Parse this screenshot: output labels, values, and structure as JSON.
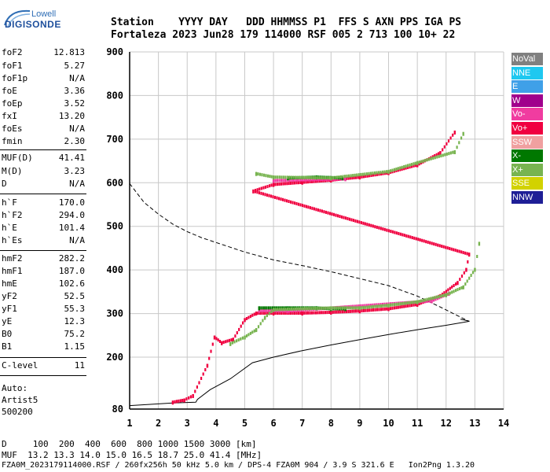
{
  "logo": {
    "line1": "Lowell",
    "line2": "DIGISONDE"
  },
  "header": {
    "row1": "Station    YYYY DAY   DDD HHMMSS P1  FFS S AXN PPS IGA PS",
    "row2": "Fortaleza 2023 Jun28 179 114000 RSF 005 2 713 100 10+ 22"
  },
  "params": [
    {
      "label": "foF2",
      "value": "12.813"
    },
    {
      "label": "foF1",
      "value": "5.27"
    },
    {
      "label": "foF1p",
      "value": "N/A"
    },
    {
      "label": "foE",
      "value": "3.36"
    },
    {
      "label": "foEp",
      "value": "3.52"
    },
    {
      "label": "fxI",
      "value": "13.20"
    },
    {
      "label": "foEs",
      "value": "N/A"
    },
    {
      "label": "fmin",
      "value": "2.30"
    },
    {
      "label": "MUF(D)",
      "value": "41.41"
    },
    {
      "label": "M(D)",
      "value": "3.23"
    },
    {
      "label": "D",
      "value": "N/A"
    },
    {
      "label": "h`F",
      "value": "170.0"
    },
    {
      "label": "h`F2",
      "value": "294.0"
    },
    {
      "label": "h`E",
      "value": "101.4"
    },
    {
      "label": "h`Es",
      "value": "N/A"
    },
    {
      "label": "hmF2",
      "value": "282.2"
    },
    {
      "label": "hmF1",
      "value": "187.0"
    },
    {
      "label": "hmE",
      "value": "102.6"
    },
    {
      "label": "yF2",
      "value": "52.5"
    },
    {
      "label": "yF1",
      "value": "55.3"
    },
    {
      "label": "yE",
      "value": "12.3"
    },
    {
      "label": "B0",
      "value": "75.2"
    },
    {
      "label": "B1",
      "value": "1.15"
    },
    {
      "label": "C-level",
      "value": "11"
    }
  ],
  "auto_block": "Auto:\nArtist5\n500200",
  "legend": [
    {
      "label": "NoVal",
      "color": "#808080"
    },
    {
      "label": "NNE",
      "color": "#1ec8f0"
    },
    {
      "label": "E",
      "color": "#3fa0e8"
    },
    {
      "label": "W",
      "color": "#a0008c"
    },
    {
      "label": "Vo-",
      "color": "#f03ca0"
    },
    {
      "label": "Vo+",
      "color": "#f00040"
    },
    {
      "label": "SSW",
      "color": "#f0a0a0"
    },
    {
      "label": "X-",
      "color": "#007800"
    },
    {
      "label": "X+",
      "color": "#78b450"
    },
    {
      "label": "SSE",
      "color": "#d2d200"
    },
    {
      "label": "NNW",
      "color": "#1e1e96"
    }
  ],
  "chart_data": {
    "type": "scatter",
    "title": "",
    "xlabel": "",
    "ylabel": "",
    "xlim": [
      1,
      14
    ],
    "ylim": [
      80,
      900
    ],
    "x_ticks": [
      1,
      2,
      3,
      4,
      5,
      6,
      7,
      8,
      9,
      10,
      11,
      12,
      13,
      14
    ],
    "y_ticks": [
      80,
      200,
      300,
      400,
      500,
      600,
      700,
      800,
      900
    ],
    "grid": true,
    "series": [
      {
        "name": "Vo+",
        "points": [
          [
            2.5,
            95
          ],
          [
            2.9,
            100
          ],
          [
            3.2,
            110
          ],
          [
            3.7,
            180
          ],
          [
            3.95,
            245
          ],
          [
            4.2,
            232
          ],
          [
            4.6,
            240
          ],
          [
            5.0,
            285
          ],
          [
            5.4,
            300
          ],
          [
            6,
            300
          ],
          [
            7,
            300
          ],
          [
            8,
            302
          ],
          [
            9,
            305
          ],
          [
            10,
            310
          ],
          [
            11,
            320
          ],
          [
            11.8,
            340
          ],
          [
            12.4,
            370
          ],
          [
            12.7,
            400
          ],
          [
            12.8,
            435
          ],
          [
            5.3,
            580
          ],
          [
            6,
            595
          ],
          [
            7,
            600
          ],
          [
            8,
            605
          ],
          [
            9,
            612
          ],
          [
            10,
            622
          ],
          [
            11,
            640
          ],
          [
            11.8,
            668
          ],
          [
            12.3,
            715
          ]
        ]
      },
      {
        "name": "Vo-",
        "points": [
          [
            5.5,
            306
          ],
          [
            6.5,
            305
          ],
          [
            11.5,
            328
          ],
          [
            12.1,
            345
          ],
          [
            6.0,
            604
          ],
          [
            8.5,
            608
          ]
        ]
      },
      {
        "name": "X-",
        "points": [
          [
            5.5,
            312
          ],
          [
            6.5,
            312
          ],
          [
            7.5,
            312
          ],
          [
            8,
            310
          ],
          [
            8.5,
            310
          ],
          [
            6.5,
            610
          ],
          [
            7.5,
            612
          ],
          [
            8.4,
            610
          ]
        ]
      },
      {
        "name": "X+",
        "points": [
          [
            4.5,
            230
          ],
          [
            5.0,
            245
          ],
          [
            5.4,
            262
          ],
          [
            5.7,
            290
          ],
          [
            6,
            308
          ],
          [
            8,
            312
          ],
          [
            9,
            312
          ],
          [
            10,
            318
          ],
          [
            11,
            326
          ],
          [
            12,
            342
          ],
          [
            12.6,
            360
          ],
          [
            13.0,
            400
          ],
          [
            13.15,
            460
          ],
          [
            5.4,
            620
          ],
          [
            6,
            612
          ],
          [
            8,
            610
          ],
          [
            10,
            625
          ],
          [
            11,
            645
          ],
          [
            12.3,
            670
          ],
          [
            12.6,
            712
          ]
        ]
      }
    ],
    "curves": [
      {
        "name": "profile-solid",
        "points": [
          [
            1,
            88
          ],
          [
            2.5,
            94
          ],
          [
            3.3,
            96
          ],
          [
            3.36,
            102.6
          ],
          [
            3.8,
            125
          ],
          [
            4.5,
            150
          ],
          [
            5.27,
            187
          ],
          [
            6,
            200
          ],
          [
            7,
            215
          ],
          [
            8,
            228
          ],
          [
            9,
            240
          ],
          [
            10,
            252
          ],
          [
            11,
            263
          ],
          [
            12,
            273
          ],
          [
            12.6,
            280
          ],
          [
            12.813,
            282.2
          ],
          [
            12.7,
            284
          ],
          [
            12.5,
            287
          ]
        ]
      },
      {
        "name": "profile-dashed",
        "points": [
          [
            1,
            598
          ],
          [
            1.5,
            555
          ],
          [
            2,
            528
          ],
          [
            2.5,
            505
          ],
          [
            3,
            488
          ],
          [
            3.5,
            474
          ],
          [
            4,
            463
          ],
          [
            4.5,
            452
          ],
          [
            5,
            441
          ],
          [
            6,
            423
          ],
          [
            7,
            410
          ],
          [
            8,
            396
          ],
          [
            9,
            380
          ],
          [
            10,
            364
          ],
          [
            11,
            340
          ],
          [
            11.8,
            315
          ],
          [
            12.4,
            295
          ],
          [
            12.8,
            282
          ]
        ]
      }
    ]
  },
  "bottom": {
    "line1": "D     100  200  400  600  800 1000 1500 3000 [km]",
    "line2": "MUF  13.2 13.3 14.0 15.0 16.5 18.7 25.0 41.4 [MHz]",
    "line3": "FZA0M_2023179114000.RSF / 260fx256h 50 kHz 5.0 km / DPS-4 FZA0M 904 / 3.9 S 321.6 E   Ion2Png 1.3.20"
  }
}
